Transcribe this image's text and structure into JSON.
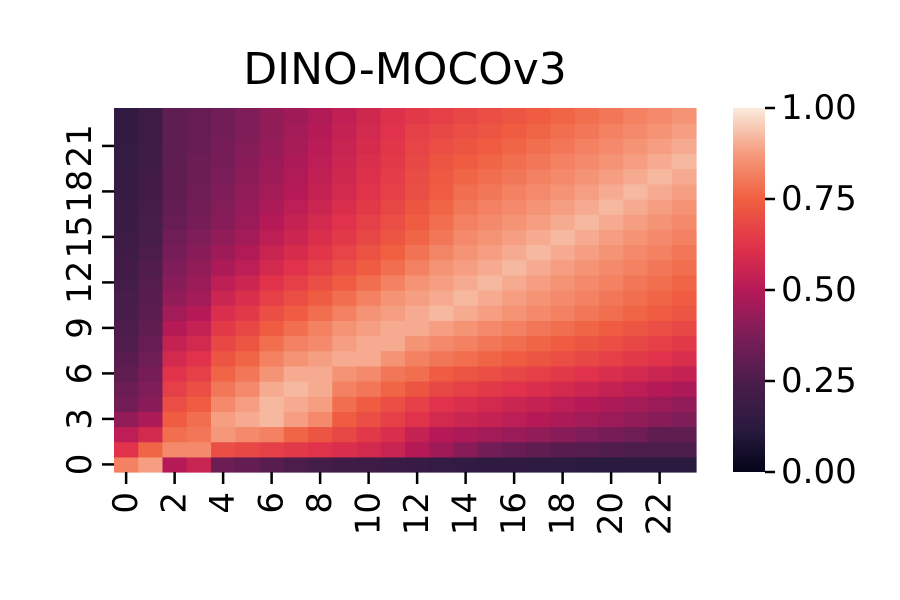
{
  "chart_data": {
    "type": "heatmap",
    "title": "DINO-MOCOv3",
    "xlabel": "",
    "ylabel": "",
    "x_tick_labels": [
      "0",
      "2",
      "4",
      "6",
      "8",
      "10",
      "12",
      "14",
      "16",
      "18",
      "20",
      "22"
    ],
    "y_tick_labels": [
      "0",
      "3",
      "6",
      "9",
      "12",
      "15",
      "18",
      "21"
    ],
    "colorbar": {
      "range": [
        0.0,
        1.0
      ],
      "tick_labels": [
        "0.00",
        "0.25",
        "0.50",
        "0.75",
        "1.00"
      ],
      "colormap": "rocket"
    },
    "rows": 24,
    "cols": 24,
    "row_order": "row 0 at bottom",
    "values": [
      [
        0.82,
        0.88,
        0.5,
        0.55,
        0.33,
        0.31,
        0.28,
        0.25,
        0.22,
        0.2,
        0.19,
        0.18,
        0.17,
        0.16,
        0.15,
        0.14,
        0.14,
        0.13,
        0.13,
        0.12,
        0.12,
        0.12,
        0.12,
        0.12
      ],
      [
        0.62,
        0.76,
        0.84,
        0.84,
        0.7,
        0.68,
        0.66,
        0.64,
        0.62,
        0.6,
        0.58,
        0.55,
        0.5,
        0.45,
        0.4,
        0.35,
        0.32,
        0.3,
        0.28,
        0.27,
        0.26,
        0.25,
        0.25,
        0.25
      ],
      [
        0.52,
        0.58,
        0.78,
        0.8,
        0.87,
        0.84,
        0.82,
        0.76,
        0.72,
        0.68,
        0.64,
        0.6,
        0.54,
        0.5,
        0.48,
        0.46,
        0.44,
        0.42,
        0.4,
        0.38,
        0.36,
        0.34,
        0.3,
        0.3
      ],
      [
        0.42,
        0.48,
        0.74,
        0.78,
        0.88,
        0.9,
        0.92,
        0.88,
        0.84,
        0.74,
        0.7,
        0.66,
        0.62,
        0.58,
        0.56,
        0.54,
        0.52,
        0.5,
        0.48,
        0.46,
        0.44,
        0.42,
        0.4,
        0.38
      ],
      [
        0.35,
        0.4,
        0.7,
        0.74,
        0.84,
        0.88,
        0.92,
        0.9,
        0.88,
        0.78,
        0.74,
        0.7,
        0.66,
        0.62,
        0.6,
        0.58,
        0.56,
        0.54,
        0.52,
        0.5,
        0.48,
        0.46,
        0.44,
        0.42
      ],
      [
        0.33,
        0.38,
        0.66,
        0.7,
        0.8,
        0.84,
        0.9,
        0.92,
        0.9,
        0.82,
        0.8,
        0.76,
        0.72,
        0.68,
        0.66,
        0.64,
        0.62,
        0.6,
        0.58,
        0.56,
        0.54,
        0.52,
        0.5,
        0.48
      ],
      [
        0.3,
        0.36,
        0.62,
        0.66,
        0.76,
        0.8,
        0.86,
        0.9,
        0.9,
        0.86,
        0.84,
        0.8,
        0.78,
        0.74,
        0.72,
        0.7,
        0.68,
        0.66,
        0.64,
        0.62,
        0.6,
        0.58,
        0.56,
        0.54
      ],
      [
        0.28,
        0.34,
        0.58,
        0.62,
        0.72,
        0.76,
        0.82,
        0.86,
        0.88,
        0.9,
        0.9,
        0.86,
        0.82,
        0.8,
        0.78,
        0.76,
        0.74,
        0.72,
        0.7,
        0.68,
        0.66,
        0.64,
        0.62,
        0.6
      ],
      [
        0.26,
        0.32,
        0.54,
        0.58,
        0.68,
        0.72,
        0.78,
        0.82,
        0.84,
        0.88,
        0.9,
        0.9,
        0.86,
        0.84,
        0.82,
        0.8,
        0.78,
        0.76,
        0.74,
        0.72,
        0.7,
        0.68,
        0.66,
        0.64
      ],
      [
        0.25,
        0.3,
        0.5,
        0.54,
        0.64,
        0.68,
        0.74,
        0.78,
        0.82,
        0.86,
        0.88,
        0.9,
        0.9,
        0.88,
        0.86,
        0.84,
        0.82,
        0.8,
        0.78,
        0.76,
        0.74,
        0.72,
        0.7,
        0.68
      ],
      [
        0.24,
        0.29,
        0.46,
        0.5,
        0.6,
        0.64,
        0.7,
        0.74,
        0.78,
        0.82,
        0.86,
        0.88,
        0.9,
        0.92,
        0.9,
        0.88,
        0.86,
        0.84,
        0.82,
        0.8,
        0.78,
        0.76,
        0.74,
        0.72
      ],
      [
        0.23,
        0.28,
        0.42,
        0.46,
        0.56,
        0.6,
        0.66,
        0.7,
        0.74,
        0.78,
        0.82,
        0.86,
        0.88,
        0.9,
        0.92,
        0.9,
        0.88,
        0.86,
        0.84,
        0.82,
        0.8,
        0.78,
        0.76,
        0.74
      ],
      [
        0.22,
        0.27,
        0.4,
        0.44,
        0.52,
        0.56,
        0.62,
        0.66,
        0.7,
        0.74,
        0.78,
        0.82,
        0.86,
        0.88,
        0.9,
        0.92,
        0.9,
        0.88,
        0.86,
        0.84,
        0.82,
        0.8,
        0.78,
        0.76
      ],
      [
        0.21,
        0.26,
        0.38,
        0.42,
        0.48,
        0.52,
        0.58,
        0.62,
        0.66,
        0.7,
        0.74,
        0.78,
        0.82,
        0.86,
        0.88,
        0.9,
        0.92,
        0.9,
        0.88,
        0.86,
        0.84,
        0.82,
        0.8,
        0.78
      ],
      [
        0.2,
        0.25,
        0.36,
        0.4,
        0.45,
        0.49,
        0.55,
        0.59,
        0.63,
        0.67,
        0.71,
        0.75,
        0.79,
        0.83,
        0.86,
        0.88,
        0.9,
        0.92,
        0.9,
        0.88,
        0.86,
        0.84,
        0.82,
        0.8
      ],
      [
        0.19,
        0.24,
        0.34,
        0.38,
        0.42,
        0.46,
        0.52,
        0.56,
        0.6,
        0.64,
        0.68,
        0.72,
        0.76,
        0.8,
        0.84,
        0.86,
        0.88,
        0.9,
        0.92,
        0.9,
        0.88,
        0.86,
        0.84,
        0.82
      ],
      [
        0.18,
        0.23,
        0.32,
        0.36,
        0.4,
        0.44,
        0.5,
        0.54,
        0.58,
        0.62,
        0.66,
        0.7,
        0.74,
        0.78,
        0.82,
        0.84,
        0.86,
        0.88,
        0.9,
        0.92,
        0.9,
        0.88,
        0.86,
        0.84
      ],
      [
        0.18,
        0.22,
        0.31,
        0.35,
        0.39,
        0.43,
        0.48,
        0.52,
        0.56,
        0.6,
        0.64,
        0.68,
        0.72,
        0.76,
        0.8,
        0.82,
        0.84,
        0.86,
        0.88,
        0.9,
        0.92,
        0.9,
        0.88,
        0.86
      ],
      [
        0.17,
        0.21,
        0.3,
        0.34,
        0.38,
        0.42,
        0.46,
        0.5,
        0.54,
        0.58,
        0.62,
        0.66,
        0.7,
        0.74,
        0.78,
        0.8,
        0.82,
        0.84,
        0.86,
        0.88,
        0.9,
        0.92,
        0.9,
        0.88
      ],
      [
        0.17,
        0.21,
        0.3,
        0.33,
        0.37,
        0.41,
        0.45,
        0.49,
        0.53,
        0.57,
        0.61,
        0.65,
        0.69,
        0.73,
        0.76,
        0.78,
        0.8,
        0.82,
        0.84,
        0.86,
        0.88,
        0.9,
        0.92,
        0.9
      ],
      [
        0.16,
        0.2,
        0.3,
        0.33,
        0.36,
        0.4,
        0.44,
        0.48,
        0.52,
        0.56,
        0.6,
        0.64,
        0.68,
        0.72,
        0.74,
        0.76,
        0.78,
        0.8,
        0.82,
        0.84,
        0.86,
        0.88,
        0.9,
        0.92
      ],
      [
        0.16,
        0.2,
        0.3,
        0.32,
        0.36,
        0.39,
        0.43,
        0.47,
        0.51,
        0.55,
        0.59,
        0.63,
        0.67,
        0.7,
        0.72,
        0.74,
        0.76,
        0.78,
        0.8,
        0.82,
        0.84,
        0.86,
        0.88,
        0.9
      ],
      [
        0.15,
        0.19,
        0.3,
        0.32,
        0.35,
        0.38,
        0.42,
        0.46,
        0.5,
        0.54,
        0.58,
        0.62,
        0.66,
        0.68,
        0.7,
        0.72,
        0.74,
        0.76,
        0.78,
        0.8,
        0.82,
        0.84,
        0.86,
        0.88
      ],
      [
        0.15,
        0.19,
        0.3,
        0.32,
        0.35,
        0.38,
        0.42,
        0.45,
        0.49,
        0.53,
        0.57,
        0.61,
        0.64,
        0.66,
        0.68,
        0.7,
        0.72,
        0.74,
        0.76,
        0.78,
        0.8,
        0.82,
        0.84,
        0.86
      ]
    ]
  }
}
